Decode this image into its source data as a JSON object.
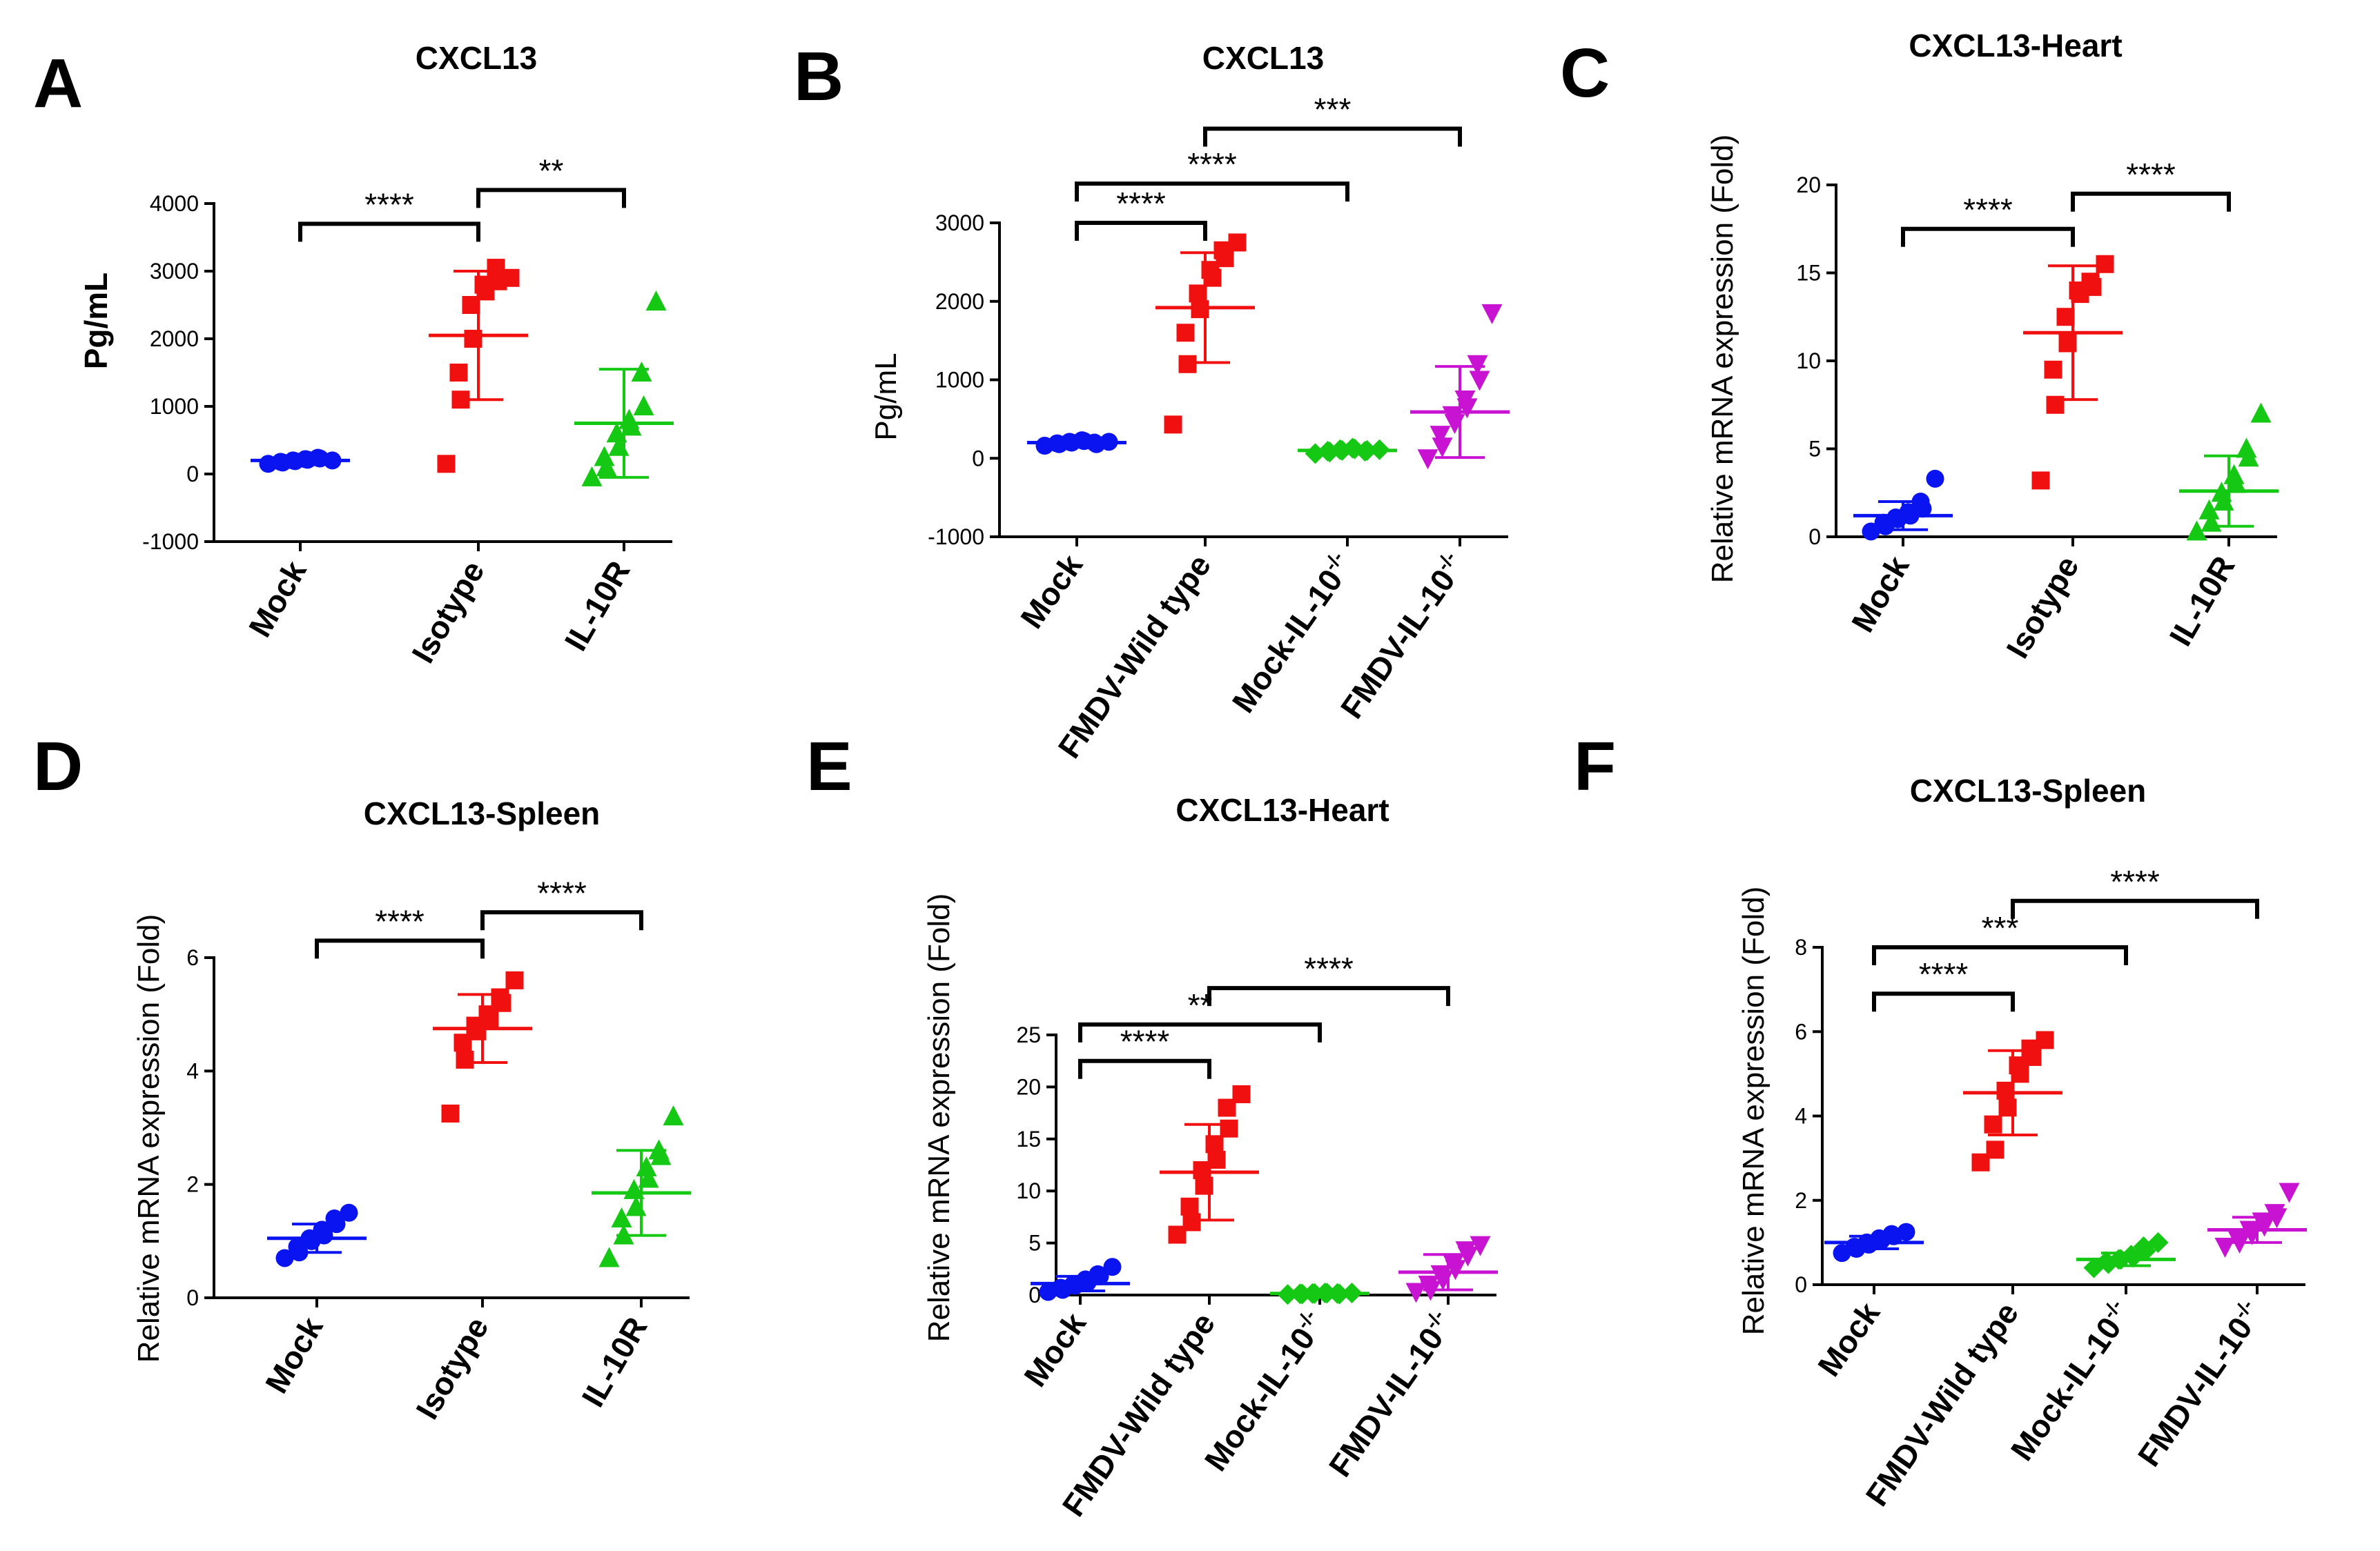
{
  "colors": {
    "Mock": "#0a14f0",
    "Isotype": "#f01010",
    "FMDV-Wild type": "#f01010",
    "IL-10R": "#14c814",
    "Mock-IL-10-/-": "#14c814",
    "FMDV-IL-10-/-": "#c814d2"
  },
  "chart_data": [
    {
      "panel": "A",
      "title": "CXCL13",
      "type": "scatter",
      "ylabel": "Pg/mL",
      "ylabel_bold": true,
      "ylim": [
        -1000,
        4000
      ],
      "yticks": [
        -1000,
        0,
        1000,
        2000,
        3000,
        4000
      ],
      "categories": [
        "Mock",
        "Isotype",
        "IL-10R"
      ],
      "series": [
        {
          "name": "Mock",
          "shape": "circle",
          "mean": 200,
          "sd": 60,
          "values": [
            150,
            170,
            180,
            190,
            200,
            210,
            220,
            230,
            240,
            200
          ]
        },
        {
          "name": "Isotype",
          "shape": "square",
          "mean": 2050,
          "sd": 950,
          "values": [
            150,
            1100,
            1500,
            2000,
            2500,
            2700,
            2800,
            2850,
            3050,
            2900
          ]
        },
        {
          "name": "IL-10R",
          "shape": "triangle-up",
          "mean": 750,
          "sd": 800,
          "values": [
            -50,
            100,
            250,
            400,
            600,
            700,
            800,
            1000,
            1500,
            2550
          ]
        }
      ],
      "significance": [
        {
          "from": "Mock",
          "to": "Isotype",
          "label": "****",
          "y": 3700
        },
        {
          "from": "Isotype",
          "to": "IL-10R",
          "label": "**",
          "y": 4200
        }
      ]
    },
    {
      "panel": "B",
      "title": "CXCL13",
      "type": "scatter",
      "ylabel": "Pg/mL",
      "ylabel_bold": false,
      "ylim": [
        -1000,
        3000
      ],
      "yticks": [
        -1000,
        0,
        1000,
        2000,
        3000
      ],
      "categories": [
        "Mock",
        "FMDV-Wild type",
        "Mock-IL-10-/-",
        "FMDV-IL-10-/-"
      ],
      "series": [
        {
          "name": "Mock",
          "shape": "circle",
          "mean": 200,
          "sd": 40,
          "values": [
            160,
            180,
            190,
            200,
            210,
            220,
            230,
            180,
            200,
            210
          ]
        },
        {
          "name": "FMDV-Wild type",
          "shape": "square",
          "mean": 1920,
          "sd": 700,
          "values": [
            430,
            1200,
            1600,
            1900,
            2100,
            2300,
            2400,
            2550,
            2650,
            2750
          ]
        },
        {
          "name": "Mock-IL-10-/-",
          "shape": "diamond",
          "mean": 100,
          "sd": 30,
          "values": [
            60,
            80,
            90,
            100,
            110,
            120,
            130,
            100,
            90,
            110
          ]
        },
        {
          "name": "FMDV-IL-10-/-",
          "shape": "triangle-down",
          "mean": 590,
          "sd": 580,
          "values": [
            0,
            150,
            300,
            450,
            550,
            650,
            750,
            1000,
            1200,
            1850
          ]
        }
      ],
      "significance": [
        {
          "from": "Mock",
          "to": "FMDV-Wild type",
          "label": "****",
          "y": 3000
        },
        {
          "from": "Mock",
          "to": "Mock-IL-10-/-",
          "label": "****",
          "y": 3500
        },
        {
          "from": "FMDV-Wild type",
          "to": "FMDV-IL-10-/-",
          "label": "***",
          "y": 4200
        }
      ]
    },
    {
      "panel": "C",
      "title": "CXCL13-Heart",
      "type": "scatter",
      "ylabel": "Relative mRNA expression (Fold)",
      "ylabel_bold": false,
      "ylim": [
        0,
        20
      ],
      "yticks": [
        0,
        5,
        10,
        15,
        20
      ],
      "categories": [
        "Mock",
        "Isotype",
        "IL-10R"
      ],
      "series": [
        {
          "name": "Mock",
          "shape": "circle",
          "mean": 1.2,
          "sd": 0.8,
          "values": [
            0.3,
            0.6,
            0.8,
            1.0,
            1.1,
            1.2,
            1.4,
            1.6,
            2.0,
            3.3
          ]
        },
        {
          "name": "Isotype",
          "shape": "square",
          "mean": 11.6,
          "sd": 3.8,
          "values": [
            3.2,
            7.5,
            9.5,
            11.0,
            12.5,
            13.8,
            14.0,
            14.2,
            14.5,
            15.5
          ]
        },
        {
          "name": "IL-10R",
          "shape": "triangle-up",
          "mean": 2.6,
          "sd": 2.0,
          "values": [
            0.3,
            0.8,
            1.5,
            2.0,
            2.5,
            3.0,
            3.5,
            4.5,
            5.0,
            7.0
          ]
        }
      ],
      "significance": [
        {
          "from": "Mock",
          "to": "Isotype",
          "label": "****",
          "y": 17.5
        },
        {
          "from": "Isotype",
          "to": "IL-10R",
          "label": "****",
          "y": 19.5
        }
      ]
    },
    {
      "panel": "D",
      "title": "CXCL13-Spleen",
      "type": "scatter",
      "ylabel": "Relative mRNA expression (Fold)",
      "ylabel_bold": false,
      "ylim": [
        0,
        6
      ],
      "yticks": [
        0,
        2,
        4,
        6
      ],
      "categories": [
        "Mock",
        "Isotype",
        "IL-10R"
      ],
      "series": [
        {
          "name": "Mock",
          "shape": "circle",
          "mean": 1.05,
          "sd": 0.25,
          "values": [
            0.7,
            0.8,
            0.9,
            1.0,
            1.05,
            1.1,
            1.2,
            1.3,
            1.4,
            1.5
          ]
        },
        {
          "name": "Isotype",
          "shape": "square",
          "mean": 4.75,
          "sd": 0.6,
          "values": [
            3.25,
            4.2,
            4.5,
            4.7,
            4.8,
            4.9,
            5.0,
            5.2,
            5.3,
            5.6
          ]
        },
        {
          "name": "IL-10R",
          "shape": "triangle-up",
          "mean": 1.85,
          "sd": 0.75,
          "values": [
            0.7,
            1.1,
            1.4,
            1.6,
            1.9,
            2.1,
            2.3,
            2.5,
            2.6,
            3.2
          ]
        }
      ],
      "significance": [
        {
          "from": "Mock",
          "to": "Isotype",
          "label": "****",
          "y": 6.3
        },
        {
          "from": "Isotype",
          "to": "IL-10R",
          "label": "****",
          "y": 6.8
        }
      ]
    },
    {
      "panel": "E",
      "title": "CXCL13-Heart",
      "type": "scatter",
      "ylabel": "Relative mRNA expression (Fold)",
      "ylabel_bold": false,
      "ylim": [
        0,
        25
      ],
      "yticks": [
        0,
        5,
        10,
        15,
        20,
        25
      ],
      "categories": [
        "Mock",
        "FMDV-Wild type",
        "Mock-IL-10-/-",
        "FMDV-IL-10-/-"
      ],
      "series": [
        {
          "name": "Mock",
          "shape": "circle",
          "mean": 1.1,
          "sd": 0.7,
          "values": [
            0.3,
            0.5,
            0.7,
            0.9,
            1.0,
            1.2,
            1.5,
            1.8,
            2.0,
            2.7
          ]
        },
        {
          "name": "FMDV-Wild type",
          "shape": "square",
          "mean": 11.8,
          "sd": 4.6,
          "values": [
            5.8,
            7.0,
            8.5,
            10.5,
            12.0,
            13.0,
            14.5,
            16.0,
            18.0,
            19.3
          ]
        },
        {
          "name": "Mock-IL-10-/-",
          "shape": "diamond",
          "mean": 0.15,
          "sd": 0.05,
          "values": [
            0.05,
            0.1,
            0.12,
            0.15,
            0.15,
            0.18,
            0.2,
            0.1,
            0.15,
            0.2
          ]
        },
        {
          "name": "FMDV-IL-10-/-",
          "shape": "triangle-down",
          "mean": 2.2,
          "sd": 1.7,
          "values": [
            0.3,
            0.5,
            1.0,
            1.5,
            2.0,
            2.5,
            3.0,
            3.8,
            4.3,
            4.8
          ]
        }
      ],
      "significance": [
        {
          "from": "Mock",
          "to": "FMDV-Wild type",
          "label": "****",
          "y": 22.5
        },
        {
          "from": "Mock",
          "to": "Mock-IL-10-/-",
          "label": "**",
          "y": 26
        },
        {
          "from": "FMDV-Wild type",
          "to": "FMDV-IL-10-/-",
          "label": "****",
          "y": 29.5
        }
      ]
    },
    {
      "panel": "F",
      "title": "CXCL13-Spleen",
      "type": "scatter",
      "ylabel": "Relative mRNA expression (Fold)",
      "ylabel_bold": false,
      "ylim": [
        0,
        8
      ],
      "yticks": [
        0,
        2,
        4,
        6,
        8
      ],
      "categories": [
        "Mock",
        "FMDV-Wild type",
        "Mock-IL-10-/-",
        "FMDV-IL-10-/-"
      ],
      "series": [
        {
          "name": "Mock",
          "shape": "circle",
          "mean": 1.0,
          "sd": 0.15,
          "values": [
            0.75,
            0.85,
            0.9,
            0.95,
            1.0,
            1.05,
            1.1,
            1.15,
            1.2,
            1.25
          ]
        },
        {
          "name": "FMDV-Wild type",
          "shape": "square",
          "mean": 4.55,
          "sd": 1.0,
          "values": [
            2.9,
            3.2,
            3.8,
            4.2,
            4.6,
            5.0,
            5.2,
            5.4,
            5.6,
            5.8
          ]
        },
        {
          "name": "Mock-IL-10-/-",
          "shape": "diamond",
          "mean": 0.6,
          "sd": 0.15,
          "values": [
            0.4,
            0.5,
            0.55,
            0.6,
            0.6,
            0.65,
            0.7,
            0.8,
            0.9,
            1.0
          ]
        },
        {
          "name": "FMDV-IL-10-/-",
          "shape": "triangle-down",
          "mean": 1.3,
          "sd": 0.3,
          "values": [
            0.9,
            1.0,
            1.1,
            1.2,
            1.3,
            1.4,
            1.5,
            1.6,
            1.7,
            2.2
          ]
        }
      ],
      "significance": [
        {
          "from": "Mock",
          "to": "FMDV-Wild type",
          "label": "****",
          "y": 6.9
        },
        {
          "from": "Mock",
          "to": "Mock-IL-10-/-",
          "label": "***",
          "y": 8.0
        },
        {
          "from": "FMDV-Wild type",
          "to": "FMDV-IL-10-/-",
          "label": "****",
          "y": 9.1
        }
      ]
    }
  ]
}
